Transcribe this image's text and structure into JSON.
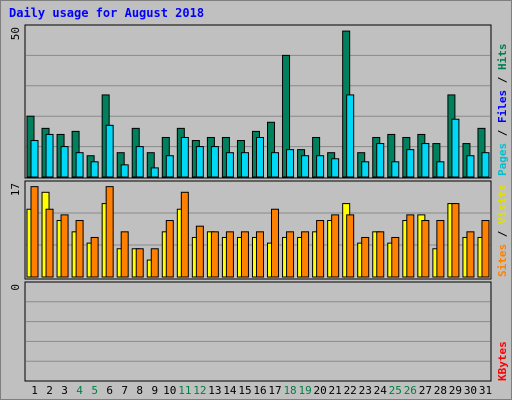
{
  "chart_data": {
    "type": "bar",
    "title": "Daily usage for August 2018",
    "categories": [
      "1",
      "2",
      "3",
      "4",
      "5",
      "6",
      "7",
      "8",
      "9",
      "10",
      "11",
      "12",
      "13",
      "14",
      "15",
      "16",
      "17",
      "18",
      "19",
      "20",
      "21",
      "22",
      "23",
      "24",
      "25",
      "26",
      "27",
      "28",
      "29",
      "30",
      "31"
    ],
    "weekend_days": [
      "4",
      "5",
      "11",
      "12",
      "18",
      "19",
      "25",
      "26"
    ],
    "panels": [
      {
        "id": "hits",
        "ymax": 50,
        "axis_label": "50",
        "legend": [
          {
            "text": "Pages",
            "color": "#00c0d0"
          },
          {
            "text": " / ",
            "color": "#000000"
          },
          {
            "text": "Files",
            "color": "#0000ff"
          },
          {
            "text": " / ",
            "color": "#000000"
          },
          {
            "text": "Hits",
            "color": "#008050"
          }
        ],
        "series": [
          {
            "name": "Hits",
            "color": "#00805c",
            "values": [
              20,
              16,
              14,
              15,
              7,
              27,
              8,
              16,
              8,
              13,
              16,
              12,
              13,
              13,
              12,
              15,
              18,
              40,
              9,
              13,
              8,
              48,
              8,
              13,
              14,
              13,
              14,
              11,
              27,
              11,
              16
            ]
          },
          {
            "name": "Files",
            "color": "#00d8f8",
            "values": [
              12,
              14,
              10,
              8,
              5,
              17,
              4,
              10,
              3,
              7,
              13,
              10,
              10,
              8,
              8,
              13,
              8,
              9,
              7,
              7,
              6,
              27,
              5,
              11,
              5,
              9,
              11,
              5,
              19,
              7,
              8
            ]
          }
        ]
      },
      {
        "id": "visits",
        "ymax": 17,
        "axis_label": "17",
        "legend": [
          {
            "text": "Sites",
            "color": "#ff8000"
          },
          {
            "text": " / ",
            "color": "#000000"
          },
          {
            "text": "Visits",
            "color": "#e0e000"
          }
        ],
        "series": [
          {
            "name": "Visits",
            "color": "#ffff00",
            "values": [
              12,
              15,
              10,
              8,
              6,
              13,
              5,
              5,
              3,
              8,
              12,
              7,
              8,
              7,
              7,
              7,
              6,
              7,
              7,
              8,
              10,
              13,
              6,
              8,
              6,
              10,
              11,
              5,
              13,
              7,
              7
            ]
          },
          {
            "name": "Sites",
            "color": "#ff8000",
            "values": [
              16,
              12,
              11,
              10,
              7,
              16,
              8,
              5,
              5,
              10,
              15,
              9,
              8,
              8,
              8,
              8,
              12,
              8,
              8,
              10,
              11,
              11,
              7,
              8,
              7,
              11,
              10,
              10,
              13,
              8,
              10
            ]
          }
        ]
      },
      {
        "id": "kbytes",
        "ymax": 0,
        "axis_label": "0",
        "legend": [
          {
            "text": "KBytes",
            "color": "#ff0000"
          }
        ],
        "series": []
      }
    ],
    "colors": {
      "title": "#0000ff",
      "weekday_label": "#000000",
      "weekend_label": "#008040",
      "plot_bg": "#c0c0c0",
      "gridline": "#8a8a8a"
    }
  }
}
